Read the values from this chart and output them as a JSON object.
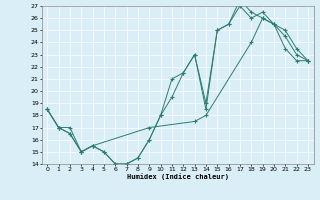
{
  "xlabel": "Humidex (Indice chaleur)",
  "xlim": [
    -0.5,
    23.5
  ],
  "ylim": [
    14,
    27
  ],
  "yticks": [
    14,
    15,
    16,
    17,
    18,
    19,
    20,
    21,
    22,
    23,
    24,
    25,
    26,
    27
  ],
  "xticks": [
    0,
    1,
    2,
    3,
    4,
    5,
    6,
    7,
    8,
    9,
    10,
    11,
    12,
    13,
    14,
    15,
    16,
    17,
    18,
    19,
    20,
    21,
    22,
    23
  ],
  "line_color": "#2e7d6e",
  "bg_color": "#d9eef7",
  "line1_x": [
    0,
    1,
    2,
    3,
    4,
    5,
    6,
    7,
    8,
    9,
    10,
    11,
    12,
    13,
    14,
    15,
    16,
    17,
    18,
    19,
    20,
    21,
    22,
    23
  ],
  "line1_y": [
    18.5,
    17.0,
    17.0,
    15.0,
    15.5,
    15.0,
    14.0,
    14.0,
    14.5,
    16.0,
    18.0,
    21.0,
    21.5,
    23.0,
    19.0,
    25.0,
    25.5,
    27.0,
    26.0,
    26.5,
    25.5,
    24.5,
    23.0,
    22.5
  ],
  "line2_x": [
    0,
    1,
    2,
    3,
    4,
    5,
    6,
    7,
    8,
    9,
    10,
    11,
    12,
    13,
    14,
    15,
    16,
    17,
    18,
    19,
    20,
    21,
    22,
    23
  ],
  "line2_y": [
    18.5,
    17.0,
    16.5,
    15.0,
    15.5,
    15.0,
    14.0,
    14.0,
    14.5,
    16.0,
    18.0,
    19.5,
    21.5,
    23.0,
    18.5,
    25.0,
    25.5,
    27.5,
    26.5,
    26.0,
    25.5,
    23.5,
    22.5,
    22.5
  ],
  "line3_x": [
    0,
    1,
    2,
    3,
    4,
    9,
    13,
    14,
    18,
    19,
    20,
    21,
    22,
    23
  ],
  "line3_y": [
    18.5,
    17.0,
    16.5,
    15.0,
    15.5,
    17.0,
    17.5,
    18.0,
    24.0,
    26.0,
    25.5,
    25.0,
    23.5,
    22.5
  ]
}
